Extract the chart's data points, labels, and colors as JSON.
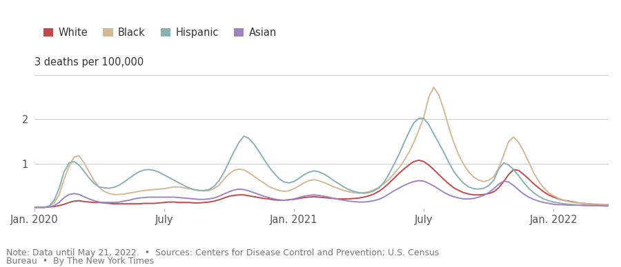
{
  "ylabel": "3 deaths per 100,000",
  "ylim": [
    0,
    3.0
  ],
  "yticks": [
    1,
    2
  ],
  "colors": {
    "White": "#c0474a",
    "Black": "#d4b896",
    "Hispanic": "#8aafb2",
    "Asian": "#9b84c0"
  },
  "note_line1": "Note: Data until May 21, 2022.  •  Sources: Centers for Disease Control and Prevention; U.S. Census",
  "note_line2": "Bureau  •  By The New York Times",
  "background_color": "#ffffff",
  "xtick_labels": [
    "Jan. 2020",
    "July",
    "Jan. 2021",
    "July",
    "Jan. 2022"
  ],
  "xtick_positions": [
    0,
    26,
    52,
    78,
    104
  ],
  "n_points": 116,
  "series": {
    "White": [
      0.02,
      0.02,
      0.02,
      0.03,
      0.04,
      0.06,
      0.09,
      0.13,
      0.16,
      0.17,
      0.15,
      0.14,
      0.13,
      0.13,
      0.12,
      0.11,
      0.1,
      0.1,
      0.1,
      0.1,
      0.1,
      0.1,
      0.11,
      0.11,
      0.11,
      0.12,
      0.13,
      0.14,
      0.14,
      0.13,
      0.13,
      0.13,
      0.12,
      0.12,
      0.13,
      0.14,
      0.16,
      0.19,
      0.23,
      0.27,
      0.29,
      0.3,
      0.3,
      0.28,
      0.26,
      0.24,
      0.22,
      0.21,
      0.19,
      0.18,
      0.18,
      0.19,
      0.2,
      0.22,
      0.24,
      0.25,
      0.26,
      0.25,
      0.24,
      0.23,
      0.22,
      0.21,
      0.21,
      0.21,
      0.22,
      0.23,
      0.25,
      0.28,
      0.32,
      0.38,
      0.46,
      0.56,
      0.67,
      0.78,
      0.88,
      0.97,
      1.05,
      1.08,
      1.05,
      0.97,
      0.87,
      0.76,
      0.65,
      0.55,
      0.46,
      0.4,
      0.35,
      0.32,
      0.3,
      0.3,
      0.31,
      0.33,
      0.37,
      0.46,
      0.6,
      0.76,
      0.87,
      0.85,
      0.76,
      0.66,
      0.55,
      0.46,
      0.37,
      0.3,
      0.25,
      0.21,
      0.18,
      0.16,
      0.14,
      0.12,
      0.11,
      0.1,
      0.09,
      0.09,
      0.08,
      0.08
    ],
    "Black": [
      0.02,
      0.02,
      0.02,
      0.05,
      0.12,
      0.3,
      0.65,
      0.95,
      1.15,
      1.18,
      1.02,
      0.82,
      0.62,
      0.47,
      0.38,
      0.33,
      0.31,
      0.31,
      0.32,
      0.34,
      0.36,
      0.38,
      0.4,
      0.41,
      0.42,
      0.43,
      0.44,
      0.46,
      0.48,
      0.48,
      0.46,
      0.44,
      0.42,
      0.4,
      0.39,
      0.4,
      0.44,
      0.52,
      0.65,
      0.77,
      0.85,
      0.88,
      0.86,
      0.8,
      0.72,
      0.64,
      0.57,
      0.49,
      0.44,
      0.4,
      0.38,
      0.39,
      0.44,
      0.5,
      0.57,
      0.62,
      0.64,
      0.62,
      0.58,
      0.53,
      0.48,
      0.44,
      0.4,
      0.37,
      0.35,
      0.34,
      0.35,
      0.37,
      0.41,
      0.47,
      0.55,
      0.65,
      0.77,
      0.9,
      1.06,
      1.25,
      1.48,
      1.75,
      2.05,
      2.5,
      2.72,
      2.55,
      2.22,
      1.82,
      1.48,
      1.2,
      0.98,
      0.82,
      0.7,
      0.63,
      0.6,
      0.63,
      0.71,
      0.9,
      1.2,
      1.5,
      1.6,
      1.48,
      1.28,
      1.04,
      0.8,
      0.61,
      0.46,
      0.35,
      0.28,
      0.22,
      0.18,
      0.15,
      0.13,
      0.12,
      0.11,
      0.1,
      0.09,
      0.09,
      0.08,
      0.08
    ],
    "Hispanic": [
      0.02,
      0.02,
      0.02,
      0.05,
      0.18,
      0.45,
      0.82,
      1.02,
      1.05,
      0.97,
      0.83,
      0.68,
      0.56,
      0.48,
      0.46,
      0.45,
      0.47,
      0.52,
      0.59,
      0.67,
      0.75,
      0.82,
      0.86,
      0.87,
      0.85,
      0.81,
      0.75,
      0.69,
      0.63,
      0.57,
      0.51,
      0.46,
      0.42,
      0.4,
      0.4,
      0.42,
      0.49,
      0.62,
      0.81,
      1.04,
      1.27,
      1.48,
      1.62,
      1.57,
      1.44,
      1.28,
      1.1,
      0.93,
      0.79,
      0.67,
      0.59,
      0.57,
      0.6,
      0.67,
      0.75,
      0.81,
      0.84,
      0.82,
      0.77,
      0.7,
      0.62,
      0.55,
      0.48,
      0.42,
      0.38,
      0.35,
      0.34,
      0.35,
      0.39,
      0.46,
      0.58,
      0.76,
      0.98,
      1.2,
      1.46,
      1.7,
      1.92,
      2.02,
      2.02,
      1.88,
      1.67,
      1.47,
      1.26,
      1.03,
      0.83,
      0.68,
      0.56,
      0.48,
      0.44,
      0.43,
      0.45,
      0.51,
      0.63,
      0.88,
      1.02,
      0.97,
      0.87,
      0.73,
      0.58,
      0.45,
      0.35,
      0.27,
      0.21,
      0.17,
      0.14,
      0.12,
      0.1,
      0.09,
      0.08,
      0.07,
      0.07,
      0.07,
      0.06,
      0.06,
      0.06,
      0.06
    ],
    "Asian": [
      0.02,
      0.02,
      0.02,
      0.03,
      0.06,
      0.13,
      0.24,
      0.31,
      0.33,
      0.31,
      0.26,
      0.21,
      0.17,
      0.14,
      0.13,
      0.13,
      0.13,
      0.14,
      0.16,
      0.18,
      0.21,
      0.23,
      0.24,
      0.25,
      0.25,
      0.25,
      0.25,
      0.25,
      0.25,
      0.24,
      0.23,
      0.22,
      0.21,
      0.2,
      0.2,
      0.21,
      0.23,
      0.27,
      0.32,
      0.37,
      0.41,
      0.43,
      0.42,
      0.39,
      0.35,
      0.31,
      0.27,
      0.24,
      0.21,
      0.19,
      0.18,
      0.19,
      0.21,
      0.24,
      0.27,
      0.29,
      0.3,
      0.29,
      0.27,
      0.25,
      0.22,
      0.2,
      0.18,
      0.16,
      0.15,
      0.14,
      0.14,
      0.15,
      0.17,
      0.2,
      0.25,
      0.32,
      0.39,
      0.45,
      0.51,
      0.56,
      0.6,
      0.62,
      0.61,
      0.56,
      0.5,
      0.43,
      0.36,
      0.3,
      0.26,
      0.23,
      0.21,
      0.21,
      0.22,
      0.25,
      0.29,
      0.35,
      0.44,
      0.54,
      0.61,
      0.59,
      0.51,
      0.41,
      0.32,
      0.25,
      0.2,
      0.16,
      0.13,
      0.11,
      0.09,
      0.08,
      0.08,
      0.07,
      0.07,
      0.07,
      0.06,
      0.06,
      0.06,
      0.06,
      0.05,
      0.05
    ]
  }
}
